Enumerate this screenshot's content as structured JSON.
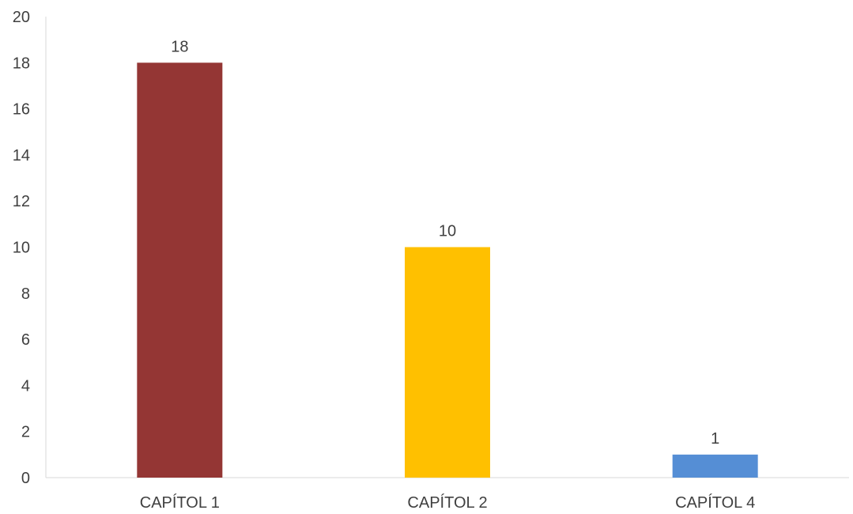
{
  "chart_data": {
    "type": "bar",
    "categories": [
      "CAPÍTOL 1",
      "CAPÍTOL 2",
      "CAPÍTOL 4"
    ],
    "values": [
      18,
      10,
      1
    ],
    "data_labels": [
      "18",
      "10",
      "1"
    ],
    "bar_colors": [
      "#943634",
      "#FFC000",
      "#558ED5"
    ],
    "title": "",
    "xlabel": "",
    "ylabel": "",
    "ylim": [
      0,
      20
    ],
    "yticks": [
      0,
      2,
      4,
      6,
      8,
      10,
      12,
      14,
      16,
      18,
      20
    ],
    "grid": false,
    "legend": "none",
    "axis_color": "#D9D9D9",
    "text_color": "#404040"
  }
}
